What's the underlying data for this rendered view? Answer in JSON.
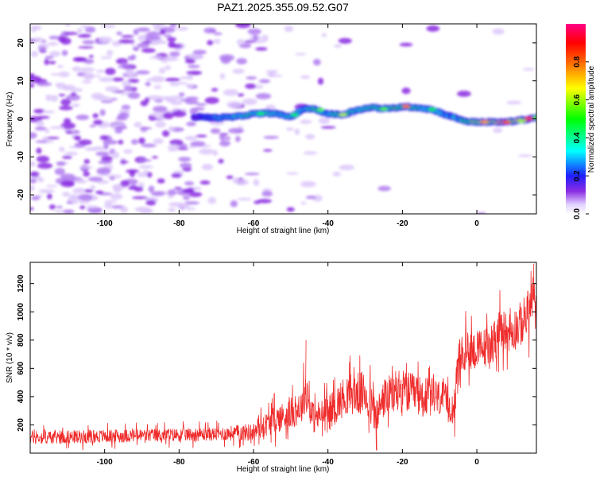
{
  "title": "PAZ1.2025.355.09.52.G07",
  "colors": {
    "snr_line": "#ef2b2b",
    "spec_low": "#8a2be2"
  },
  "chart_data": [
    {
      "type": "heatmap",
      "title": "PAZ1.2025.355.09.52.G07",
      "xlabel": "Height of straight line (km)",
      "ylabel": "Frequency (Hz)",
      "xlim": [
        -120,
        16
      ],
      "ylim": [
        -25,
        25
      ],
      "xticks": [
        -100,
        -80,
        -60,
        -40,
        -20,
        0
      ],
      "xtick_labels": [
        "-100",
        "-80",
        "-60",
        "-40",
        "-20",
        "0"
      ],
      "yticks": [
        20,
        10,
        0,
        -10,
        -20
      ],
      "ytick_labels": [
        "20",
        "10",
        "0",
        "-10",
        "-20"
      ],
      "colorbar": {
        "label": "Normalized spectral amplitude",
        "range": [
          0,
          1
        ],
        "ticks": [
          0.0,
          0.2,
          0.4,
          0.6,
          0.8
        ],
        "tick_labels": [
          "0.0",
          "0.2",
          "0.4",
          "0.6",
          "0.8"
        ]
      },
      "ridge": {
        "description_points_height_km": [
          -75,
          -70,
          -65,
          -60,
          -55,
          -50,
          -46,
          -43,
          -40,
          -36,
          -32,
          -28,
          -24,
          -20,
          -16,
          -12,
          -8,
          -5,
          -2,
          2,
          6,
          10,
          14,
          16
        ],
        "frequency_hz": [
          0.5,
          0.3,
          0.5,
          1.3,
          1.5,
          0.5,
          2.8,
          2.4,
          1.3,
          1.1,
          2.4,
          3.0,
          2.6,
          3.2,
          3.0,
          2.4,
          1.0,
          0.0,
          -0.8,
          -0.8,
          -0.9,
          -0.6,
          0.0,
          0.4
        ],
        "amplitude": [
          0.15,
          0.3,
          0.35,
          0.4,
          0.4,
          0.35,
          0.35,
          0.5,
          0.3,
          0.6,
          0.35,
          0.45,
          0.5,
          0.55,
          0.4,
          0.35,
          0.3,
          0.35,
          0.55,
          0.7,
          0.75,
          0.6,
          0.8,
          0.5
        ]
      }
    },
    {
      "type": "line",
      "xlabel": "Height of straight line (km)",
      "ylabel": "SNR (10 * v/v)",
      "xlim": [
        -120,
        16
      ],
      "ylim": [
        0,
        1350
      ],
      "xticks": [
        -100,
        -80,
        -60,
        -40,
        -20,
        0
      ],
      "xtick_labels": [
        "-100",
        "-80",
        "-60",
        "-40",
        "-20",
        "0"
      ],
      "yticks": [
        200,
        400,
        600,
        800,
        1000,
        1200
      ],
      "ytick_labels": [
        "200",
        "400",
        "600",
        "800",
        "1000",
        "1200"
      ],
      "series": [
        {
          "name": "SNR",
          "x": [
            -120,
            -110,
            -100,
            -90,
            -80,
            -70,
            -60,
            -55,
            -50,
            -47,
            -46,
            -44,
            -40,
            -35,
            -30,
            -27,
            -25,
            -20,
            -15,
            -10,
            -6,
            -5,
            -2,
            0,
            3,
            6,
            9,
            12,
            14,
            15,
            16
          ],
          "y": [
            110,
            115,
            120,
            125,
            130,
            135,
            150,
            230,
            280,
            330,
            460,
            250,
            280,
            420,
            420,
            250,
            390,
            440,
            400,
            390,
            320,
            650,
            750,
            720,
            760,
            850,
            860,
            920,
            1000,
            1100,
            1000
          ],
          "noise_amplitude": [
            60,
            60,
            60,
            60,
            60,
            60,
            80,
            120,
            140,
            150,
            200,
            140,
            150,
            180,
            200,
            180,
            180,
            190,
            180,
            170,
            150,
            180,
            190,
            180,
            180,
            190,
            190,
            200,
            210,
            220,
            200
          ]
        }
      ]
    }
  ]
}
